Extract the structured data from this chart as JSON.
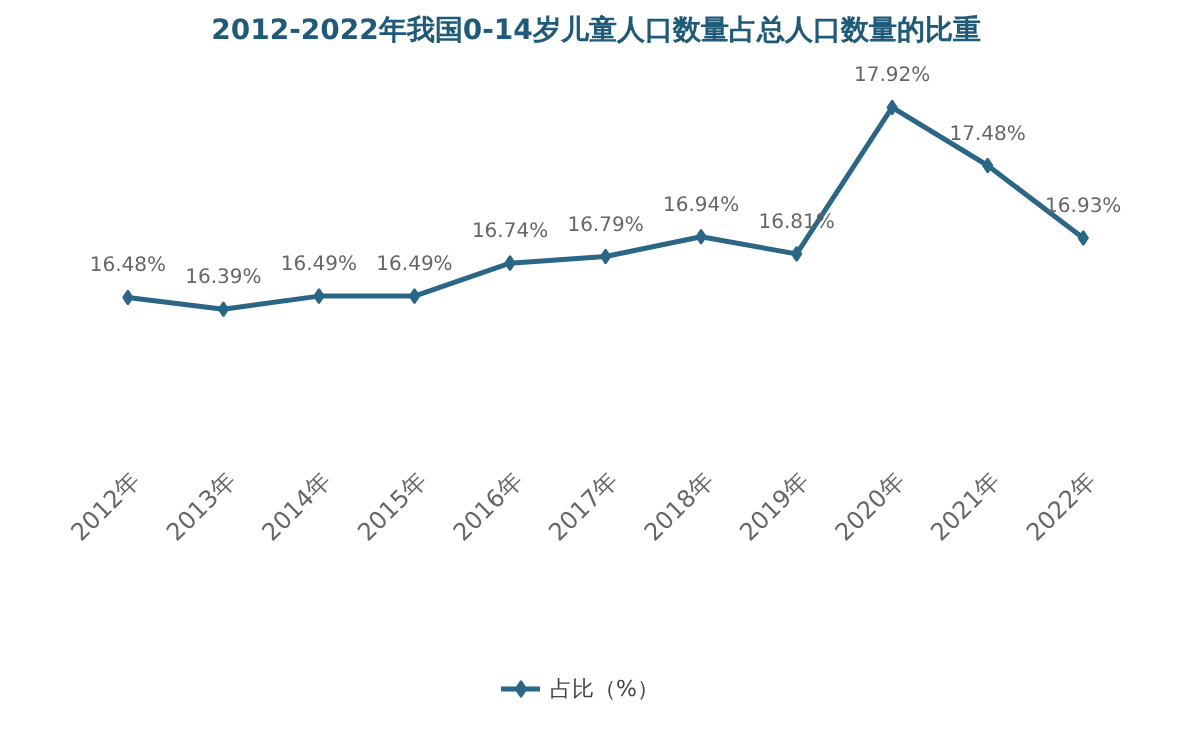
{
  "chart_data": {
    "type": "line",
    "title": "2012-2022年我国0-14岁儿童人口数量占总人口数量的比重",
    "categories": [
      "2012年",
      "2013年",
      "2014年",
      "2015年",
      "2016年",
      "2017年",
      "2018年",
      "2019年",
      "2020年",
      "2021年",
      "2022年"
    ],
    "series": [
      {
        "name": "占比（%）",
        "color": "#2b6686",
        "values": [
          16.48,
          16.39,
          16.49,
          16.49,
          16.74,
          16.79,
          16.94,
          16.81,
          17.92,
          17.48,
          16.93
        ],
        "value_labels": [
          "16.48%",
          "16.39%",
          "16.49%",
          "16.49%",
          "16.74%",
          "16.79%",
          "16.94%",
          "16.81%",
          "17.92%",
          "17.48%",
          "16.93%"
        ]
      }
    ],
    "legend": "bottom",
    "marker": "diamond",
    "line_style": "solid",
    "grid": false
  }
}
